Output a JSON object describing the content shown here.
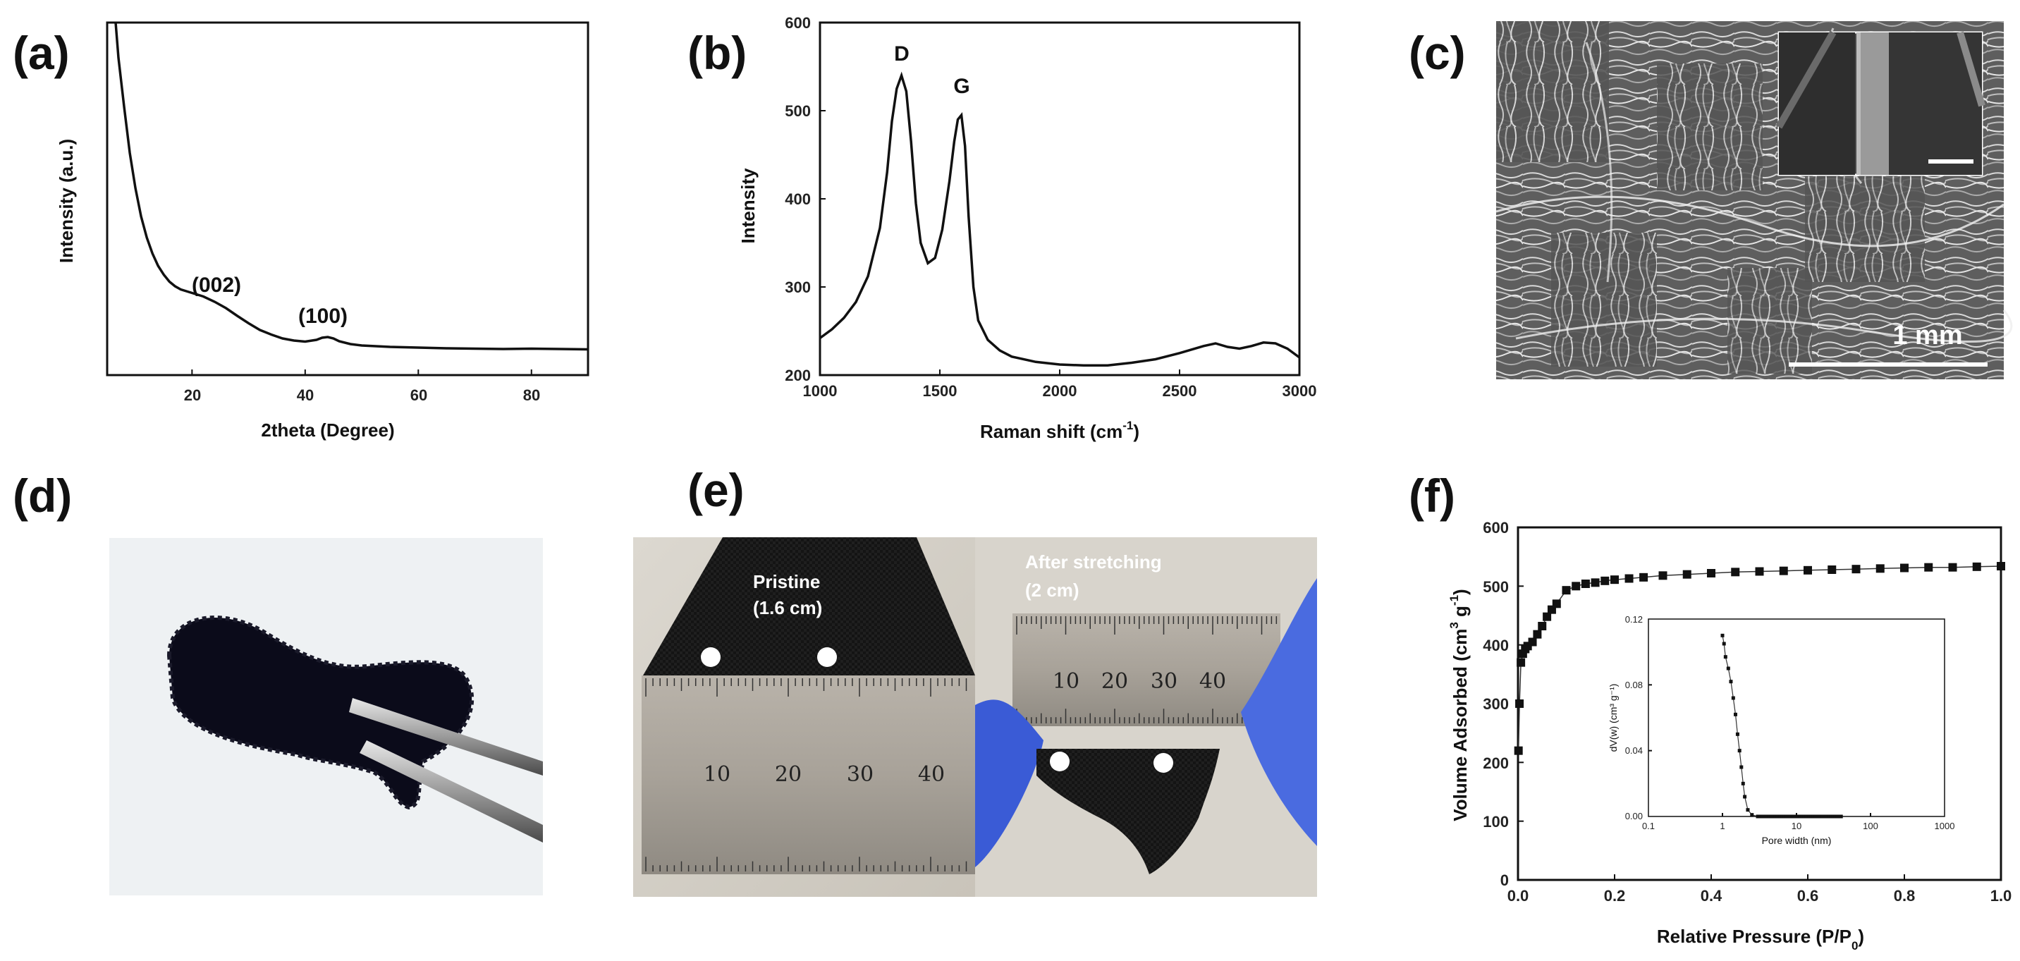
{
  "panels": {
    "a": {
      "label": "(a)",
      "peak_labels": [
        "(002)",
        "(100)"
      ],
      "xticks": [
        "20",
        "40",
        "60",
        "80"
      ],
      "xlabel": "2theta (Degree)",
      "ylabel": "Intensity (a.u.)"
    },
    "b": {
      "label": "(b)",
      "peak_labels": [
        "D",
        "G"
      ],
      "xticks": [
        "1000",
        "1500",
        "2000",
        "2500",
        "3000"
      ],
      "yticks": [
        "200",
        "300",
        "400",
        "500",
        "600"
      ],
      "xlabel": "Raman shift (cm",
      "xlabel_sup": "-1",
      "xlabel_end": ")",
      "ylabel": "Intensity"
    },
    "c": {
      "label": "(c)",
      "scale_bar": "1 mm"
    },
    "d": {
      "label": "(d)"
    },
    "e": {
      "label": "(e)",
      "left_caption": [
        "Pristine",
        "(1.6 cm)"
      ],
      "right_caption": [
        "After stretching",
        "(2 cm)"
      ],
      "ruler_numbers": [
        "10",
        "20",
        "30",
        "40"
      ]
    },
    "f": {
      "label": "(f)",
      "xticks": [
        "0.0",
        "0.2",
        "0.4",
        "0.6",
        "0.8",
        "1.0"
      ],
      "yticks": [
        "0",
        "100",
        "200",
        "300",
        "400",
        "500",
        "600"
      ],
      "xlabel": "Relative Pressure (P/P",
      "xlabel_sub": "0",
      "xlabel_end": ")",
      "ylabel": "Volume Adsorbed (cm",
      "ylabel_sup": "3",
      "ylabel_mid": " g",
      "ylabel_sup2": "-1",
      "ylabel_end": ")",
      "inset": {
        "xticks": [
          "0.1",
          "1",
          "10",
          "100",
          "1000"
        ],
        "yticks": [
          "0.00",
          "0.04",
          "0.08",
          "0.12"
        ],
        "xlabel": "Pore width (nm)",
        "ylabel": "dV(w) (cm³ g⁻¹)"
      }
    }
  },
  "chart_data": [
    {
      "panel": "(a)",
      "type": "line",
      "xlabel": "2theta (Degree)",
      "ylabel": "Intensity (a.u.)",
      "xlim": [
        5,
        90
      ],
      "ylim": [
        0,
        100
      ],
      "x": [
        6.5,
        7,
        8,
        9,
        10,
        11,
        12,
        13,
        14,
        15,
        16,
        17,
        18,
        19,
        20,
        22,
        24,
        26,
        28,
        30,
        32,
        34,
        36,
        38,
        40,
        42,
        43,
        44,
        45,
        46,
        48,
        50,
        55,
        60,
        65,
        70,
        75,
        80,
        85,
        90
      ],
      "y": [
        100,
        90,
        76,
        63,
        53,
        45,
        39,
        34.5,
        31,
        28.5,
        26.5,
        25.2,
        24.3,
        23.8,
        23.3,
        22.3,
        20.8,
        19,
        16.8,
        14.7,
        12.8,
        11.5,
        10.4,
        9.8,
        9.5,
        10,
        10.6,
        10.8,
        10.4,
        9.6,
        8.8,
        8.4,
        8,
        7.8,
        7.6,
        7.5,
        7.4,
        7.5,
        7.4,
        7.3
      ],
      "annotations": [
        {
          "text": "(002)",
          "x": 24
        },
        {
          "text": "(100)",
          "x": 43.5
        }
      ]
    },
    {
      "panel": "(b)",
      "type": "line",
      "xlabel": "Raman shift (cm-1)",
      "ylabel": "Intensity",
      "xlim": [
        1000,
        3000
      ],
      "ylim": [
        200,
        600
      ],
      "x": [
        1000,
        1050,
        1100,
        1150,
        1200,
        1250,
        1280,
        1300,
        1320,
        1340,
        1360,
        1380,
        1400,
        1420,
        1450,
        1480,
        1510,
        1540,
        1560,
        1575,
        1590,
        1605,
        1620,
        1640,
        1660,
        1700,
        1750,
        1800,
        1900,
        2000,
        2100,
        2200,
        2300,
        2400,
        2500,
        2600,
        2650,
        2700,
        2750,
        2800,
        2850,
        2900,
        2950,
        3000
      ],
      "y": [
        242,
        252,
        265,
        283,
        312,
        367,
        430,
        488,
        525,
        540,
        522,
        465,
        395,
        350,
        327,
        333,
        365,
        420,
        465,
        490,
        495,
        460,
        380,
        300,
        262,
        240,
        228,
        221,
        215,
        212,
        211,
        211,
        214,
        218,
        225,
        233,
        236,
        232,
        230,
        233,
        237,
        236,
        230,
        220
      ],
      "annotations": [
        {
          "text": "D",
          "x": 1340
        },
        {
          "text": "G",
          "x": 1590
        }
      ]
    },
    {
      "panel": "(f)",
      "type": "scatter",
      "xlabel": "Relative Pressure (P/P0)",
      "ylabel": "Volume Adsorbed (cm3 g-1)",
      "xlim": [
        0,
        1.0
      ],
      "ylim": [
        0,
        600
      ],
      "x": [
        0.001,
        0.003,
        0.006,
        0.01,
        0.015,
        0.02,
        0.03,
        0.04,
        0.05,
        0.06,
        0.07,
        0.08,
        0.1,
        0.12,
        0.14,
        0.16,
        0.18,
        0.2,
        0.23,
        0.26,
        0.3,
        0.35,
        0.4,
        0.45,
        0.5,
        0.55,
        0.6,
        0.65,
        0.7,
        0.75,
        0.8,
        0.85,
        0.9,
        0.95,
        1.0
      ],
      "y": [
        220,
        300,
        370,
        385,
        393,
        398,
        405,
        418,
        432,
        448,
        460,
        470,
        493,
        500,
        504,
        506,
        509,
        511,
        513,
        515,
        518,
        520,
        522,
        524,
        525,
        526,
        527,
        528,
        529,
        530,
        531,
        532,
        532,
        533,
        534
      ],
      "inset": {
        "type": "line",
        "xlabel": "Pore width (nm)",
        "ylabel": "dV(w) (cm3 g-1)",
        "xscale": "log",
        "xlim": [
          0.1,
          1000
        ],
        "ylim": [
          0,
          0.12
        ],
        "x": [
          1.0,
          1.05,
          1.1,
          1.2,
          1.3,
          1.4,
          1.5,
          1.6,
          1.7,
          1.8,
          1.9,
          2.0,
          2.2,
          2.5,
          3,
          4,
          5,
          7,
          10,
          15,
          20,
          30,
          40
        ],
        "y": [
          0.11,
          0.105,
          0.097,
          0.09,
          0.082,
          0.072,
          0.062,
          0.05,
          0.04,
          0.03,
          0.02,
          0.012,
          0.004,
          0.001,
          0,
          0,
          0,
          0,
          0,
          0,
          0,
          0,
          0
        ]
      }
    }
  ]
}
